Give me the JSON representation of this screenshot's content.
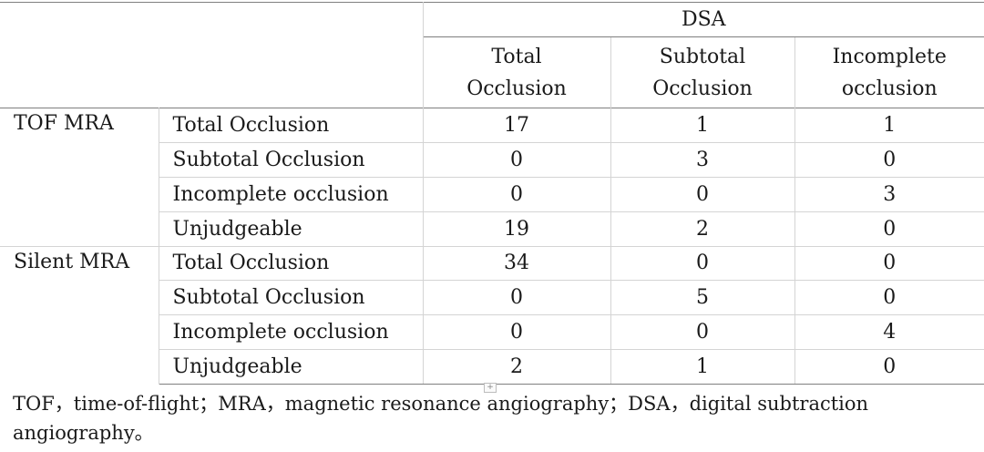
{
  "header": {
    "group_label": "DSA",
    "columns": [
      {
        "line1": "Total",
        "line2": "Occlusion"
      },
      {
        "line1": "Subtotal",
        "line2": "Occlusion"
      },
      {
        "line1": "Incomplete",
        "line2": "occlusion"
      }
    ]
  },
  "groups": [
    {
      "method": "TOF MRA",
      "rows": [
        {
          "label": "Total Occlusion",
          "values": [
            "17",
            "1",
            "1"
          ]
        },
        {
          "label": "Subtotal Occlusion",
          "values": [
            "0",
            "3",
            "0"
          ]
        },
        {
          "label": "Incomplete occlusion",
          "values": [
            "0",
            "0",
            "3"
          ]
        },
        {
          "label": "Unjudgeable",
          "values": [
            "19",
            "2",
            "0"
          ]
        }
      ]
    },
    {
      "method": "Silent MRA",
      "rows": [
        {
          "label": "Total Occlusion",
          "values": [
            "34",
            "0",
            "0"
          ]
        },
        {
          "label": "Subtotal Occlusion",
          "values": [
            "0",
            "5",
            "0"
          ]
        },
        {
          "label": "Incomplete occlusion",
          "values": [
            "0",
            "0",
            "4"
          ]
        },
        {
          "label": "Unjudgeable",
          "values": [
            "2",
            "1",
            "0"
          ]
        }
      ]
    }
  ],
  "handle_glyph": "+",
  "footnote": "TOF，time-of-flight；MRA，magnetic resonance angiography；DSA，digital subtraction angiography。"
}
